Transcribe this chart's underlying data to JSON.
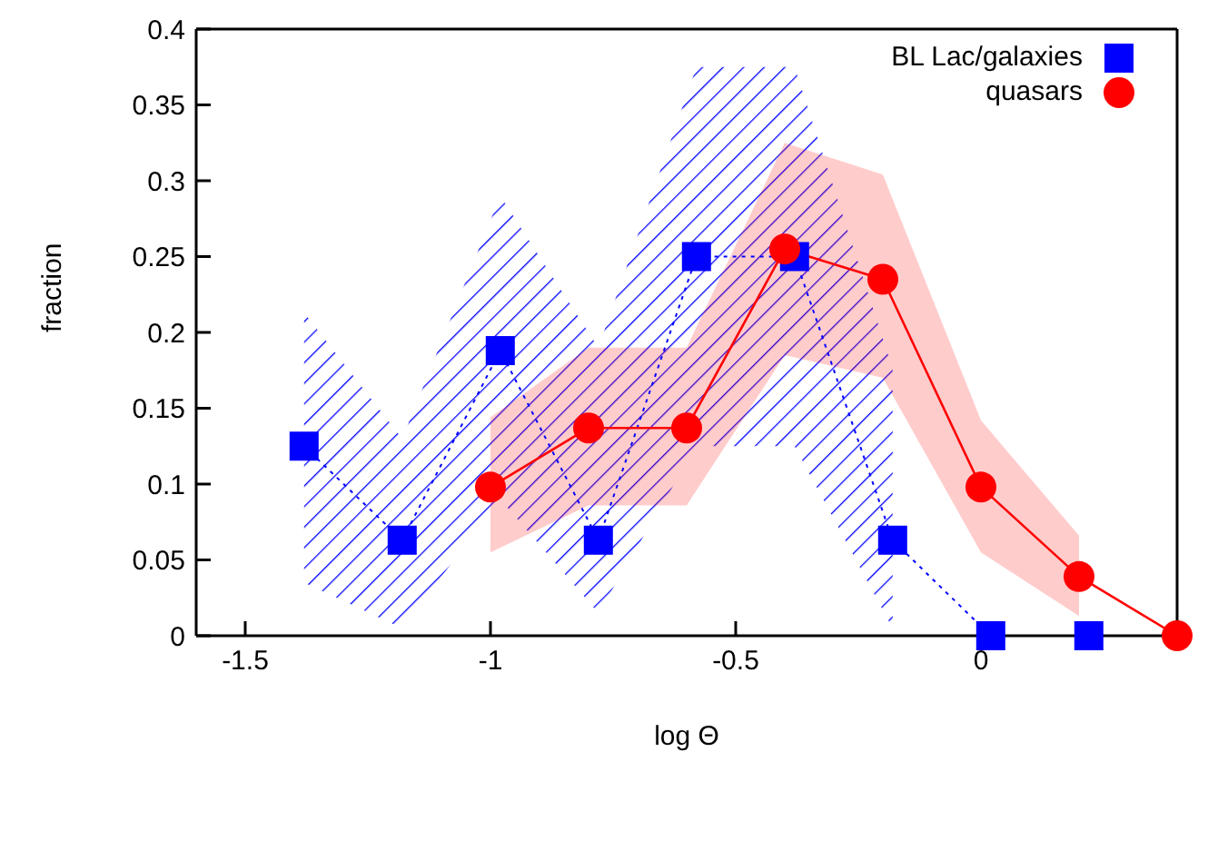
{
  "chart_data": {
    "type": "line",
    "xlabel": "log Θ",
    "ylabel": "fraction",
    "xlim": [
      -1.6,
      0.4
    ],
    "xticks": [
      -1.5,
      -1,
      -0.5,
      0
    ],
    "ylim": [
      0,
      0.4
    ],
    "yticks": [
      0,
      0.05,
      0.1,
      0.15,
      0.2,
      0.25,
      0.3,
      0.35,
      0.4
    ],
    "legend": "top right",
    "series": [
      {
        "name": "BL Lac/galaxies",
        "color": "#0000ff",
        "marker": "square",
        "line_style": "dotted",
        "x": [
          -1.38,
          -1.18,
          -0.98,
          -0.78,
          -0.58,
          -0.38,
          -0.18,
          0.02,
          0.22
        ],
        "values": [
          0.125,
          0.063,
          0.188,
          0.063,
          0.25,
          0.25,
          0.063,
          0,
          0
        ],
        "lower": [
          0.035,
          0.005,
          0.09,
          0.015,
          0.125,
          0.125,
          0.005,
          null,
          null
        ],
        "upper": [
          0.213,
          0.13,
          0.29,
          0.19,
          0.375,
          0.375,
          0.176,
          null,
          null
        ]
      },
      {
        "name": "quasars",
        "color": "#ff0000",
        "marker": "circle",
        "line_style": "solid",
        "x": [
          -1,
          -0.8,
          -0.6,
          -0.4,
          -0.2,
          0,
          0.2,
          0.4
        ],
        "values": [
          0.098,
          0.137,
          0.137,
          0.255,
          0.235,
          0.098,
          0.039,
          0
        ],
        "lower": [
          0.055,
          0.086,
          0.086,
          0.185,
          0.17,
          0.055,
          0.013,
          null
        ],
        "upper": [
          0.144,
          0.19,
          0.19,
          0.325,
          0.304,
          0.142,
          0.066,
          null
        ]
      }
    ]
  }
}
